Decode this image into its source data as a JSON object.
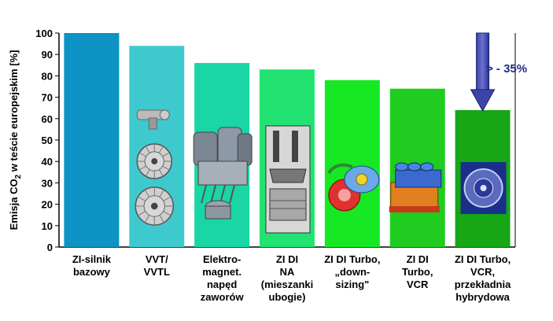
{
  "chart_data": {
    "type": "bar",
    "title": "",
    "ylabel_main": "Emisja CO",
    "ylabel_sub": "2",
    "ylabel_rest": " w teście europejskim [%]",
    "ylim": [
      0,
      100
    ],
    "yticks": [
      0,
      10,
      20,
      30,
      40,
      50,
      60,
      70,
      80,
      90,
      100
    ],
    "grid": false,
    "categories": [
      [
        "ZI-silnik",
        "bazowy"
      ],
      [
        "VVT/",
        "VVTL"
      ],
      [
        "Elektro-",
        "magnet.",
        "napęd",
        "zaworów"
      ],
      [
        "ZI DI",
        "NA",
        "(mieszanki",
        "ubogie)"
      ],
      [
        "ZI DI Turbo,",
        "„down-",
        "sizing\""
      ],
      [
        "ZI DI",
        "Turbo,",
        "VCR"
      ],
      [
        "ZI DI Turbo,",
        "VCR,",
        "przekładnia",
        "hybrydowa"
      ]
    ],
    "values": [
      100,
      94,
      86,
      83,
      78,
      74,
      64
    ],
    "colors": [
      "#0d93c4",
      "#3ec9cf",
      "#19d6a4",
      "#22e372",
      "#16e824",
      "#1fcc1f",
      "#16a616"
    ],
    "illustrations": [
      "",
      "valve-actuator-icon",
      "electromagnetic-valve-icon",
      "direct-injection-engine-icon",
      "turbocharger-icon",
      "vcr-engine-icon",
      "hybrid-transmission-icon"
    ],
    "annotation": {
      "text": "> - 35%",
      "color": "#1f2a8a"
    }
  }
}
